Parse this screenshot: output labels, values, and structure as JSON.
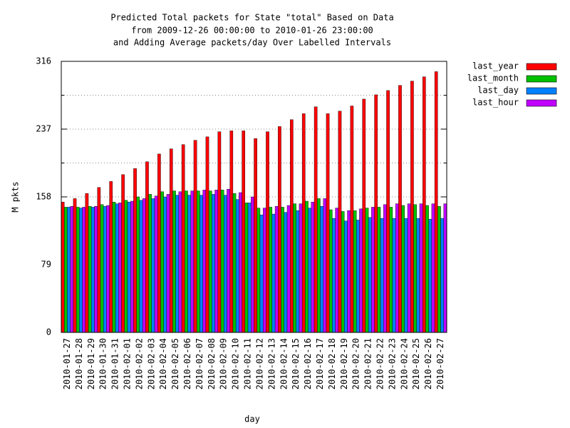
{
  "chart_data": {
    "type": "bar",
    "title": [
      "Predicted Total packets for State \"total\" Based on Data",
      "from 2009-12-26 00:00:00 to 2010-01-26 23:00:00",
      "and Adding Average packets/day Over Labelled Intervals"
    ],
    "xlabel": "day",
    "ylabel": "M pkts",
    "categories": [
      "2010-01-27",
      "2010-01-28",
      "2010-01-29",
      "2010-01-30",
      "2010-01-31",
      "2010-02-01",
      "2010-02-02",
      "2010-02-03",
      "2010-02-04",
      "2010-02-05",
      "2010-02-06",
      "2010-02-07",
      "2010-02-08",
      "2010-02-09",
      "2010-02-10",
      "2010-02-11",
      "2010-02-12",
      "2010-02-13",
      "2010-02-14",
      "2010-02-15",
      "2010-02-16",
      "2010-02-17",
      "2010-02-18",
      "2010-02-19",
      "2010-02-20",
      "2010-02-21",
      "2010-02-22",
      "2010-02-23",
      "2010-02-24",
      "2010-02-25",
      "2010-02-26",
      "2010-02-27"
    ],
    "series": [
      {
        "name": "last_year",
        "color": "#ff0000",
        "values": [
          152,
          156,
          162,
          169,
          176,
          184,
          191,
          199,
          208,
          214,
          219,
          224,
          228,
          234,
          235,
          235,
          226,
          234,
          240,
          248,
          255,
          263,
          255,
          258,
          264,
          272,
          277,
          282,
          288,
          293,
          298,
          304
        ]
      },
      {
        "name": "last_month",
        "color": "#00c000",
        "values": [
          146,
          146,
          147,
          149,
          152,
          154,
          158,
          161,
          164,
          165,
          165,
          165,
          165,
          166,
          162,
          151,
          145,
          146,
          146,
          150,
          153,
          156,
          143,
          141,
          142,
          145,
          146,
          146,
          148,
          149,
          148,
          147
        ]
      },
      {
        "name": "last_day",
        "color": "#0080ff",
        "values": [
          146,
          145,
          146,
          147,
          150,
          152,
          154,
          156,
          158,
          160,
          160,
          160,
          161,
          160,
          155,
          151,
          137,
          138,
          140,
          142,
          145,
          147,
          133,
          130,
          131,
          134,
          133,
          133,
          133,
          133,
          132,
          133
        ]
      },
      {
        "name": "last_hour",
        "color": "#c000ff",
        "values": [
          147,
          146,
          147,
          148,
          151,
          153,
          156,
          159,
          161,
          164,
          165,
          166,
          166,
          167,
          163,
          158,
          145,
          147,
          148,
          150,
          152,
          156,
          145,
          142,
          144,
          146,
          149,
          150,
          150,
          150,
          150,
          150
        ]
      }
    ],
    "ylim": [
      0,
      316
    ],
    "yticks": [
      0,
      79,
      158,
      237,
      316
    ],
    "minor_yticks": [
      39.5,
      118.5,
      197.5,
      276.5
    ],
    "grid": true,
    "legend": "outside-top-right"
  }
}
